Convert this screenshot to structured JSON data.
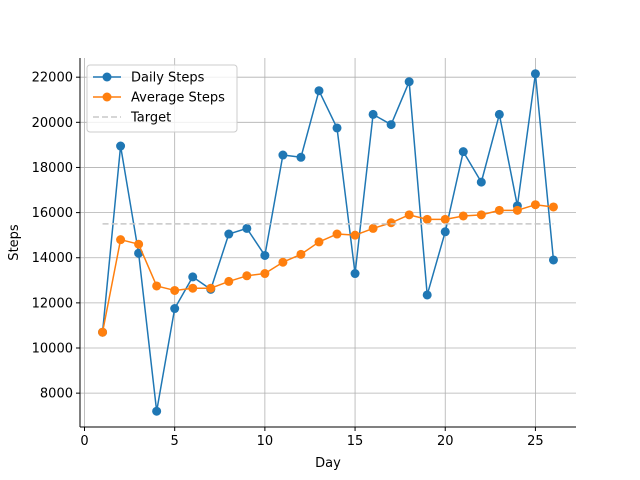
{
  "chart_data": {
    "type": "line",
    "title": "",
    "xlabel": "Day",
    "ylabel": "Steps",
    "xlim": [
      -0.25,
      27.25
    ],
    "ylim": [
      6500,
      22850
    ],
    "grid": true,
    "legend_position": "top-left",
    "x_ticks": [
      0,
      5,
      10,
      15,
      20,
      25
    ],
    "y_ticks": [
      8000,
      10000,
      12000,
      14000,
      16000,
      18000,
      20000,
      22000
    ],
    "x": [
      1,
      2,
      3,
      4,
      5,
      6,
      7,
      8,
      9,
      10,
      11,
      12,
      13,
      14,
      15,
      16,
      17,
      18,
      19,
      20,
      21,
      22,
      23,
      24,
      25,
      26
    ],
    "series": [
      {
        "name": "Daily Steps",
        "color": "#1f77b4",
        "style": "line-markers",
        "values": [
          10700,
          18950,
          14200,
          7200,
          11750,
          13150,
          12600,
          15050,
          15300,
          14100,
          18550,
          18450,
          21400,
          19750,
          13300,
          20350,
          19900,
          21800,
          12350,
          15150,
          18700,
          17350,
          20350,
          16300,
          22150,
          13900
        ]
      },
      {
        "name": "Average Steps",
        "color": "#ff7f0e",
        "style": "line-markers",
        "values": [
          10700,
          14800,
          14600,
          12750,
          12550,
          12650,
          12650,
          12950,
          13200,
          13300,
          13800,
          14150,
          14700,
          15050,
          15000,
          15300,
          15550,
          15900,
          15700,
          15700,
          15850,
          15900,
          16100,
          16100,
          16350,
          16250
        ]
      },
      {
        "name": "Target",
        "color": "#c8c8c8",
        "style": "dashed",
        "x_range": [
          1,
          26
        ],
        "value": 15500
      }
    ]
  }
}
